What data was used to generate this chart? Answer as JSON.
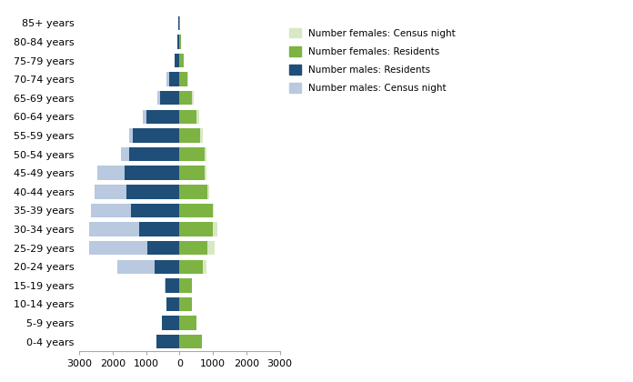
{
  "age_groups": [
    "0-4 years",
    "5-9 years",
    "10-14 years",
    "15-19 years",
    "20-24 years",
    "25-29 years",
    "30-34 years",
    "35-39 years",
    "40-44 years",
    "45-49 years",
    "50-54 years",
    "55-59 years",
    "60-64 years",
    "65-69 years",
    "70-74 years",
    "75-79 years",
    "80-84 years",
    "85+ years"
  ],
  "males_census": [
    700,
    530,
    390,
    420,
    750,
    950,
    1200,
    1450,
    1600,
    1650,
    1500,
    1400,
    1000,
    580,
    320,
    140,
    60,
    40
  ],
  "males_residents": [
    700,
    530,
    390,
    420,
    750,
    950,
    1200,
    1450,
    1600,
    1650,
    1500,
    1400,
    1000,
    580,
    320,
    140,
    60,
    40
  ],
  "males_census_night": [
    0,
    0,
    0,
    450,
    1850,
    2700,
    2700,
    2650,
    2550,
    2450,
    1750,
    1500,
    1100,
    650,
    380,
    0,
    0,
    0
  ],
  "females_census_night": [
    0,
    0,
    0,
    0,
    820,
    1060,
    1120,
    1020,
    900,
    800,
    810,
    700,
    600,
    420,
    260,
    0,
    0,
    0
  ],
  "females_residents": [
    680,
    510,
    370,
    370,
    690,
    840,
    990,
    990,
    840,
    760,
    740,
    610,
    520,
    370,
    225,
    115,
    48,
    18
  ],
  "color_males_census": "#b8c9e0",
  "color_males_residents": "#1f4e79",
  "color_females_census": "#d9e8c4",
  "color_females_residents": "#7cb342",
  "xlim": 3000,
  "bar_height": 0.75
}
